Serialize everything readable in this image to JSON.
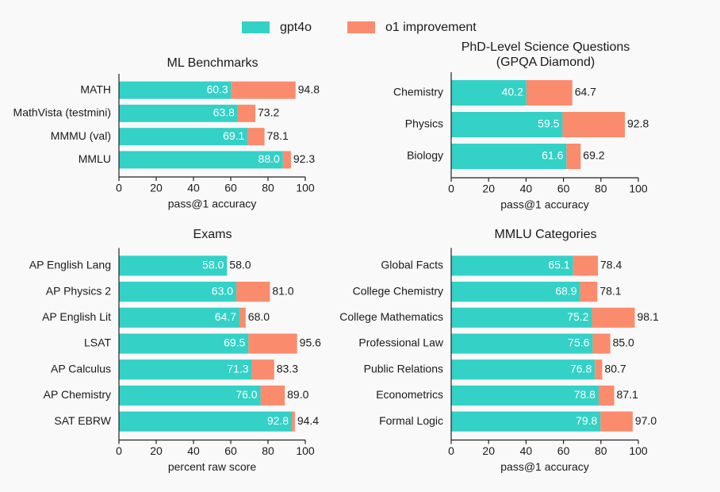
{
  "legend": {
    "position": "top",
    "entries": [
      {
        "name": "gpt4o",
        "color": "#33d1c6"
      },
      {
        "name": "o1 improvement",
        "color": "#fb8b6d"
      }
    ]
  },
  "chart_data": [
    {
      "type": "bar",
      "orientation": "horizontal",
      "stacked": true,
      "title": "ML Benchmarks",
      "xlabel": "pass@1 accuracy",
      "categories": [
        "MATH",
        "MathVista (testmini)",
        "MMMU (val)",
        "MMLU"
      ],
      "series": [
        {
          "values": [
            60.3,
            63.8,
            69.1,
            88.0
          ],
          "value_labels": [
            "60.3",
            "63.8",
            "69.1",
            "88.0"
          ]
        },
        {
          "values": [
            34.5,
            9.4,
            9.0,
            4.3
          ]
        }
      ],
      "totals": [
        94.8,
        73.2,
        78.1,
        92.3
      ],
      "total_labels": [
        "94.8",
        "73.2",
        "78.1",
        "92.3"
      ],
      "xlim": [
        0,
        100
      ],
      "xticks": [
        0,
        20,
        40,
        60,
        80,
        100
      ]
    },
    {
      "type": "bar",
      "orientation": "horizontal",
      "stacked": true,
      "title": [
        "PhD-Level Science Questions",
        "(GPQA Diamond)"
      ],
      "xlabel": "pass@1 accuracy",
      "categories": [
        "Chemistry",
        "Physics",
        "Biology"
      ],
      "series": [
        {
          "values": [
            40.2,
            59.5,
            61.6
          ],
          "value_labels": [
            "40.2",
            "59.5",
            "61.6"
          ]
        },
        {
          "values": [
            24.5,
            33.3,
            7.6
          ]
        }
      ],
      "totals": [
        64.7,
        92.8,
        69.2
      ],
      "total_labels": [
        "64.7",
        "92.8",
        "69.2"
      ],
      "xlim": [
        0,
        100
      ],
      "xticks": [
        0,
        20,
        40,
        60,
        80,
        100
      ]
    },
    {
      "type": "bar",
      "orientation": "horizontal",
      "stacked": true,
      "title": "Exams",
      "xlabel": "percent raw score",
      "categories": [
        "AP English Lang",
        "AP Physics 2",
        "AP English Lit",
        "LSAT",
        "AP Calculus",
        "AP Chemistry",
        "SAT EBRW"
      ],
      "series": [
        {
          "values": [
            58.0,
            63.0,
            64.7,
            69.5,
            71.3,
            76.0,
            92.8
          ],
          "value_labels": [
            "58.0",
            "63.0",
            "64.7",
            "69.5",
            "71.3",
            "76.0",
            "92.8"
          ]
        },
        {
          "values": [
            0.0,
            18.0,
            3.3,
            26.1,
            12.0,
            13.0,
            1.6
          ]
        }
      ],
      "totals": [
        58.0,
        81.0,
        68.0,
        95.6,
        83.3,
        89.0,
        94.4
      ],
      "total_labels": [
        "58.0",
        "81.0",
        "68.0",
        "95.6",
        "83.3",
        "89.0",
        "94.4"
      ],
      "xlim": [
        0,
        100
      ],
      "xticks": [
        0,
        20,
        40,
        60,
        80,
        100
      ]
    },
    {
      "type": "bar",
      "orientation": "horizontal",
      "stacked": true,
      "title": "MMLU Categories",
      "xlabel": "pass@1 accuracy",
      "categories": [
        "Global Facts",
        "College Chemistry",
        "College Mathematics",
        "Professional Law",
        "Public Relations",
        "Econometrics",
        "Formal Logic"
      ],
      "series": [
        {
          "values": [
            65.1,
            68.9,
            75.2,
            75.6,
            76.8,
            78.8,
            79.8
          ],
          "value_labels": [
            "65.1",
            "68.9",
            "75.2",
            "75.6",
            "76.8",
            "78.8",
            "79.8"
          ]
        },
        {
          "values": [
            13.3,
            9.2,
            22.9,
            9.4,
            3.9,
            8.3,
            17.2
          ]
        }
      ],
      "totals": [
        78.4,
        78.1,
        98.1,
        85.0,
        80.7,
        87.1,
        97.0
      ],
      "total_labels": [
        "78.4",
        "78.1",
        "98.1",
        "85.0",
        "80.7",
        "87.1",
        "97.0"
      ],
      "xlim": [
        0,
        100
      ],
      "xticks": [
        0,
        20,
        40,
        60,
        80,
        100
      ]
    }
  ]
}
